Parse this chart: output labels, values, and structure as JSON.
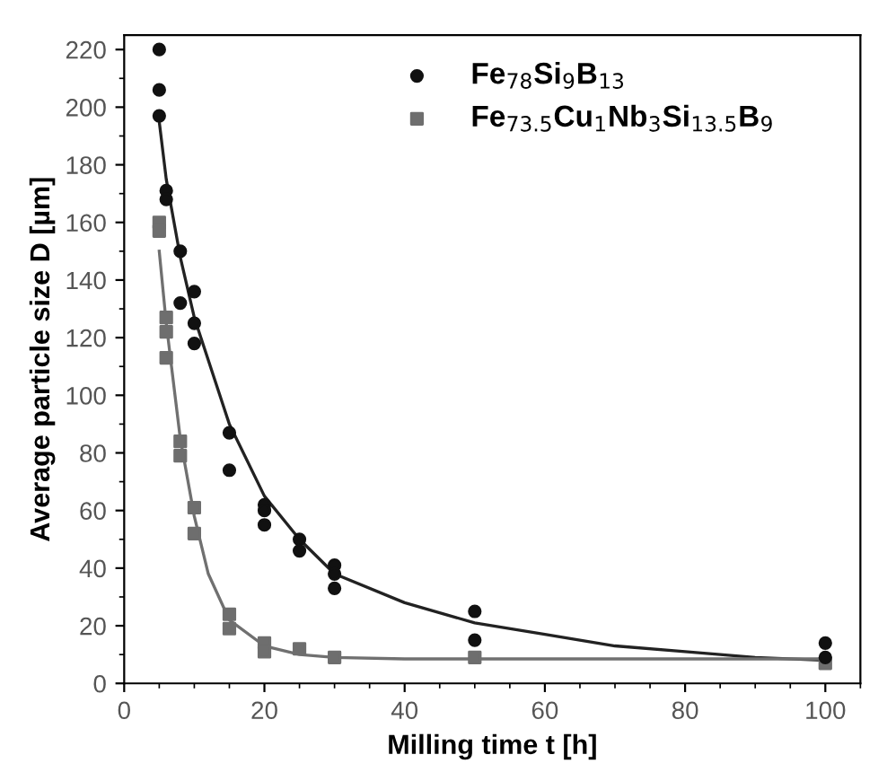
{
  "chart_data": {
    "type": "scatter",
    "xlabel": "Milling time t [h]",
    "ylabel": "Average particle size D [µm]",
    "xlim": [
      0,
      105
    ],
    "ylim": [
      0,
      225
    ],
    "xticks": [
      0,
      20,
      40,
      60,
      80,
      100
    ],
    "yticks": [
      0,
      20,
      40,
      60,
      80,
      100,
      120,
      140,
      160,
      180,
      200,
      220
    ],
    "grid": false,
    "legend": "top",
    "series": [
      {
        "name": "Fe$_{78}$Si$_{9}$B$_{13}$",
        "marker": "circle",
        "color": "#111111",
        "x": [
          5,
          5,
          5,
          6,
          6,
          8,
          8,
          10,
          10,
          10,
          15,
          15,
          20,
          20,
          20,
          25,
          25,
          30,
          30,
          30,
          50,
          50,
          100,
          100
        ],
        "values": [
          220,
          206,
          197,
          171,
          168,
          150,
          132,
          136,
          125,
          118,
          87,
          74,
          62,
          60,
          55,
          50,
          46,
          41,
          38,
          33,
          25,
          15,
          14,
          9
        ]
      },
      {
        "name": "Fe$_{73.5}$Cu$_{1}$Nb$_{3}$Si$_{13.5}$B$_{9}$",
        "marker": "square",
        "color": "#6e6e6e",
        "x": [
          5,
          5,
          6,
          6,
          6,
          8,
          8,
          10,
          10,
          15,
          15,
          20,
          20,
          25,
          30,
          50,
          100
        ],
        "values": [
          160,
          157,
          127,
          122,
          113,
          84,
          79,
          61,
          52,
          24,
          19,
          14,
          11,
          12,
          9,
          9,
          7
        ]
      },
      {
        "type": "line",
        "color": "#222222",
        "x": [
          5,
          6,
          8,
          10,
          15,
          20,
          25,
          30,
          40,
          50,
          60,
          70,
          80,
          90,
          100
        ],
        "values": [
          195,
          175,
          148,
          127,
          90,
          65,
          50,
          38,
          28,
          21,
          17,
          13,
          11,
          9,
          8
        ]
      },
      {
        "type": "line",
        "color": "#707070",
        "x": [
          5,
          6,
          8,
          10,
          12,
          15,
          20,
          25,
          30,
          40,
          60,
          100
        ],
        "values": [
          150,
          125,
          85,
          58,
          38,
          22,
          13,
          10,
          9,
          8.5,
          8.5,
          8.5
        ]
      }
    ]
  }
}
